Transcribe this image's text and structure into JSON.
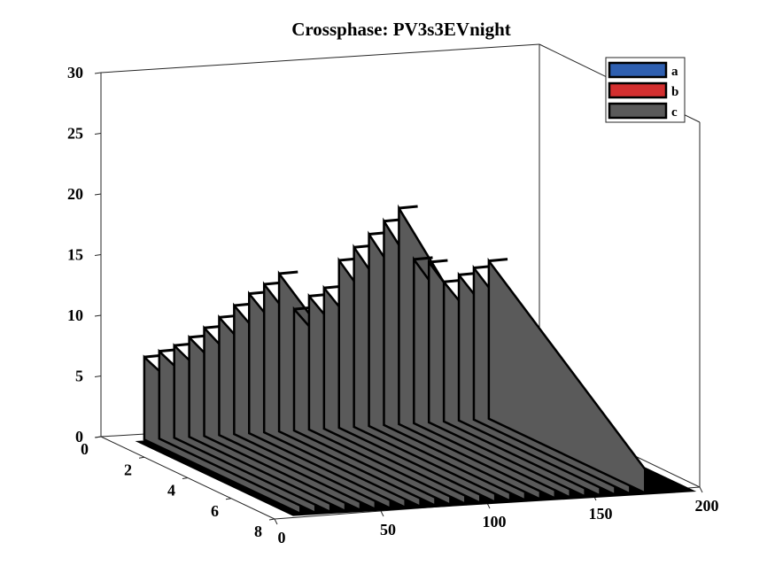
{
  "chart_data": {
    "type": "bar3d",
    "title": "Crossphase: PV3s3EVnight",
    "x_ticks": [
      "0",
      "50",
      "100",
      "150",
      "200"
    ],
    "y_ticks": [
      "0",
      "2",
      "4",
      "6",
      "8"
    ],
    "z_ticks": [
      "0",
      "5",
      "10",
      "15",
      "20",
      "25",
      "30"
    ],
    "xlim": [
      0,
      200
    ],
    "ylim": [
      0,
      8
    ],
    "zlim": [
      0,
      30
    ],
    "legend": {
      "placement": "top-right",
      "entries": [
        {
          "label": "a",
          "color": "#2e5fb0"
        },
        {
          "label": "b",
          "color": "#d32f2f"
        },
        {
          "label": "c",
          "color": "#5a5a5a"
        }
      ]
    },
    "series": [
      {
        "name": "a",
        "color": "#2e5fb0",
        "values": []
      },
      {
        "name": "b",
        "color": "#d32f2f",
        "values": []
      },
      {
        "name": "c",
        "color": "#5a5a5a",
        "segments": [
          {
            "x": [
              0,
              1,
              2,
              3,
              4,
              5,
              6,
              7
            ],
            "values": [
              6.8,
              7.2,
              7.6,
              8.2,
              8.9,
              9.7,
              10.6,
              11.5
            ]
          },
          {
            "x": [
              8,
              9
            ],
            "values": [
              12.2,
              13.0
            ]
          },
          {
            "x": [
              10
            ],
            "values": [
              10.0
            ]
          },
          {
            "x": [
              11,
              12
            ],
            "values": [
              11.0,
              11.6
            ]
          },
          {
            "x": [
              13,
              14,
              15,
              16,
              17
            ],
            "values": [
              13.8,
              14.8,
              15.8,
              16.8,
              17.8
            ]
          },
          {
            "x": [
              18,
              19
            ],
            "values": [
              13.5,
              13.2
            ]
          },
          {
            "x": [
              20,
              21,
              22,
              23
            ],
            "values": [
              11.5,
              12.0,
              12.5,
              13.0
            ]
          }
        ]
      }
    ],
    "grid": false
  }
}
